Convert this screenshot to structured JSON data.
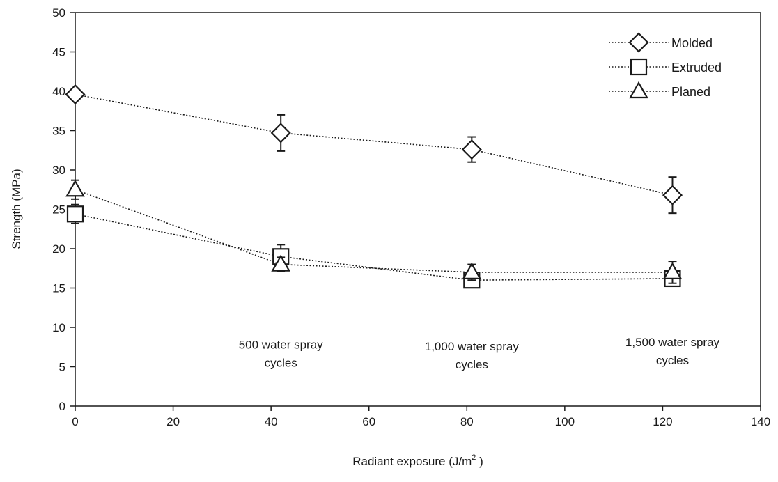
{
  "chart_data": {
    "type": "scatter",
    "title": "",
    "xlabel": "Radiant exposure (J/m",
    "xlabel_sup": "2",
    "xlabel_close": " )",
    "ylabel": "Strength (MPa)",
    "xlim": [
      0,
      140
    ],
    "ylim": [
      0,
      50
    ],
    "x_ticks": [
      "0",
      "20",
      "40",
      "60",
      "80",
      "100",
      "120",
      "140"
    ],
    "y_ticks": [
      "0",
      "5",
      "10",
      "15",
      "20",
      "25",
      "30",
      "35",
      "40",
      "45",
      "50"
    ],
    "grid": false,
    "legend_position": "top-right",
    "series": [
      {
        "name": "Molded",
        "marker": "diamond",
        "x": [
          0,
          42,
          81,
          122
        ],
        "y": [
          39.6,
          34.7,
          32.6,
          26.8
        ],
        "err": [
          0.4,
          2.3,
          1.6,
          2.3
        ]
      },
      {
        "name": "Extruded",
        "marker": "square",
        "x": [
          0,
          42,
          81,
          122
        ],
        "y": [
          24.4,
          19.0,
          16.0,
          16.2
        ],
        "err": [
          1.2,
          1.5,
          0.7,
          0.7
        ]
      },
      {
        "name": "Planed",
        "marker": "triangle",
        "x": [
          0,
          42,
          81,
          122
        ],
        "y": [
          27.5,
          18.0,
          17.0,
          17.0
        ],
        "err": [
          1.2,
          0.9,
          1.0,
          1.4
        ]
      }
    ],
    "annotations": [
      {
        "lines": [
          "500 water spray",
          "cycles"
        ],
        "x": 42,
        "y": 7.3
      },
      {
        "lines": [
          "1,000 water spray",
          "cycles"
        ],
        "x": 81,
        "y": 7.1
      },
      {
        "lines": [
          "1,500 water spray",
          "cycles"
        ],
        "x": 122,
        "y": 7.6
      }
    ]
  }
}
